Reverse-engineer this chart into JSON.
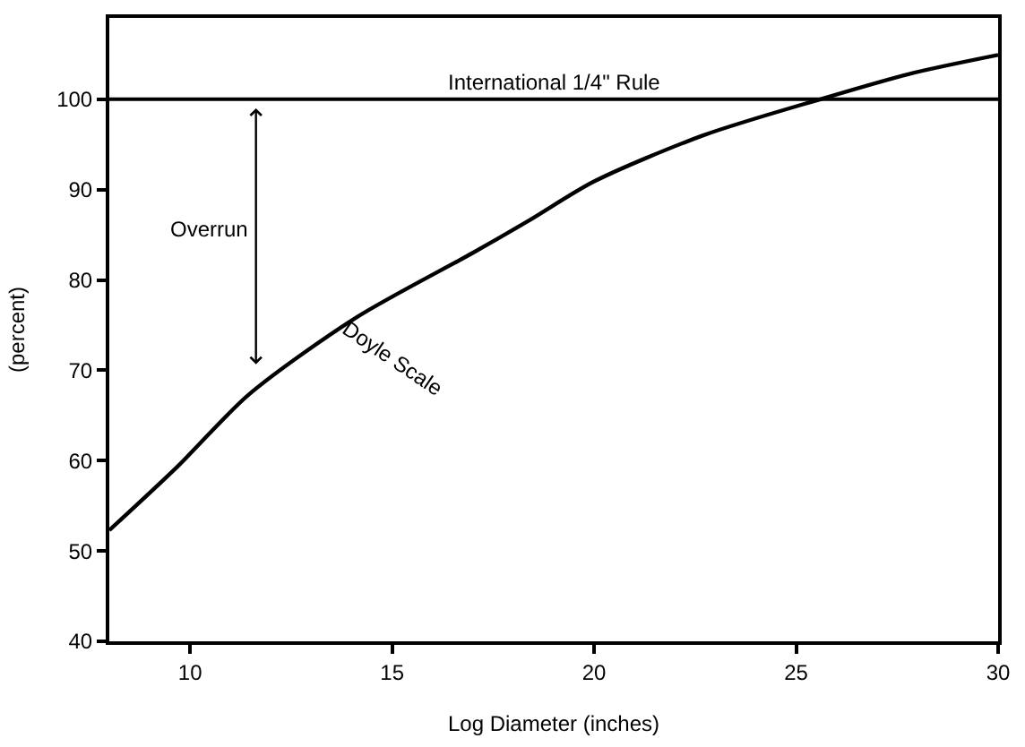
{
  "chart_data": {
    "type": "line",
    "xlabel": "Log Diameter (inches)",
    "ylabel": "(percent)",
    "x": [
      8,
      9.7,
      11.45,
      14.1,
      17.0,
      18.4,
      20.0,
      22.7,
      25.6,
      27.8,
      30
    ],
    "series": [
      {
        "name": "Doyle Scale",
        "color": "#000000",
        "values": [
          52.3,
          59.4,
          67.3,
          75.8,
          83.0,
          86.6,
          90.9,
          96.0,
          100.0,
          102.8,
          104.9
        ]
      }
    ],
    "xlim": [
      8,
      30
    ],
    "xticks": [
      10,
      15,
      20,
      25,
      30
    ],
    "ylim": [
      40,
      109
    ],
    "yticks": [
      40,
      50,
      60,
      70,
      80,
      90,
      100
    ],
    "ref_lines": [
      {
        "axis": "y",
        "value": 100,
        "label": "International 1/4\" Rule",
        "color": "#000000"
      }
    ],
    "annotations": [
      "Overrun"
    ],
    "legend": false,
    "marker": "none",
    "line_style": "solid"
  }
}
